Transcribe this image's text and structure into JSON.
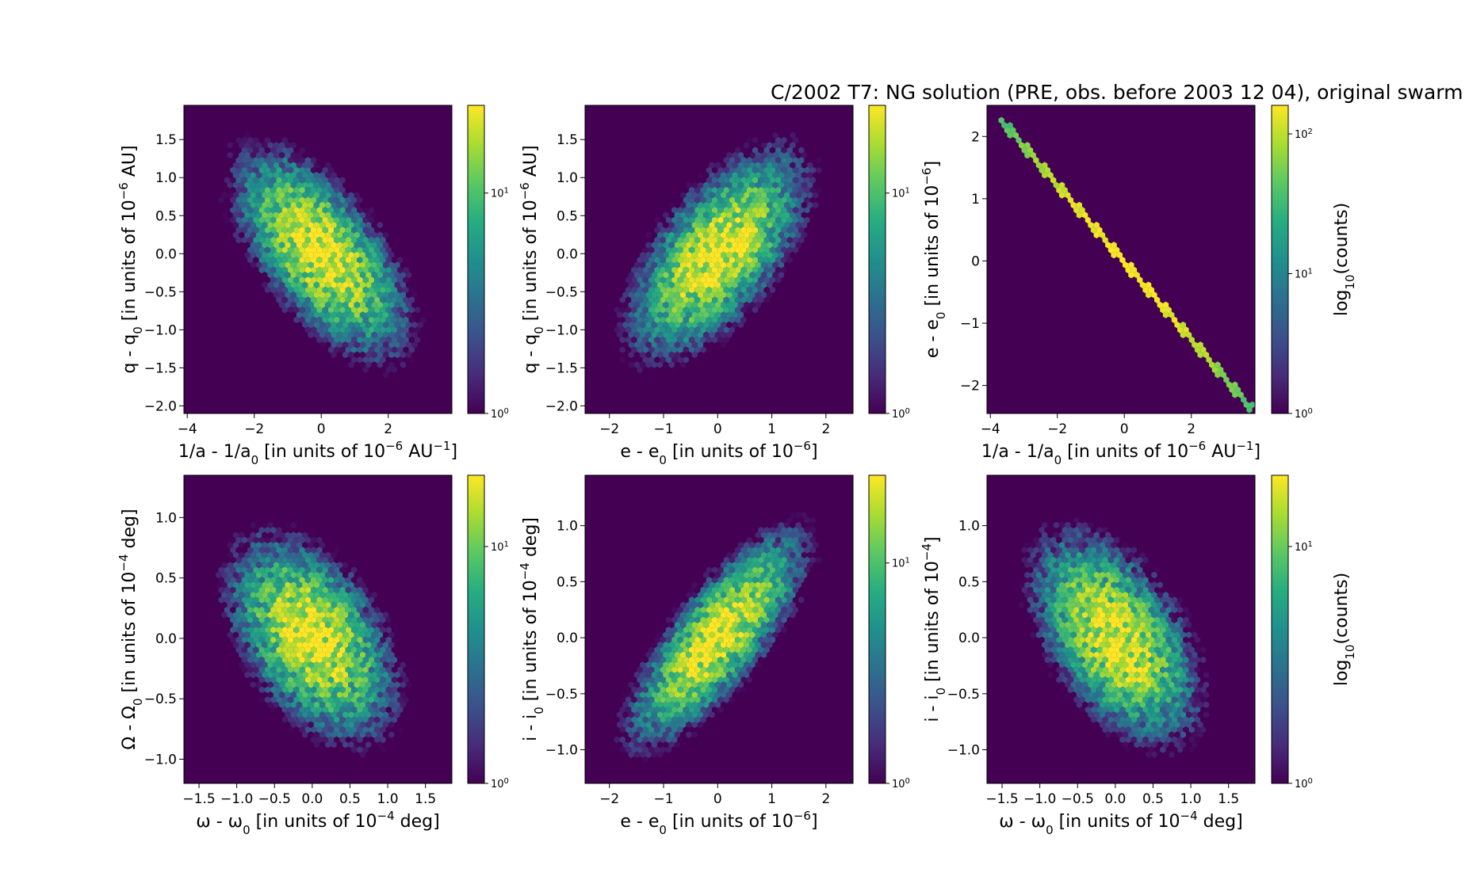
{
  "figure": {
    "title": "C/2002 T7:  NG solution (PRE, obs. before 2003 12 04), original swarm"
  },
  "colormap": [
    "#440154",
    "#472c7a",
    "#3b518b",
    "#2c718e",
    "#21908d",
    "#27ad81",
    "#5cc863",
    "#aadc32",
    "#fde725"
  ],
  "chart_data": [
    {
      "type": "hexbin",
      "id": "p1",
      "xlabel": "1/a - 1/a",
      "xlabel_sub": "0",
      "xlabel_tail": " [in units of 10",
      "xlabel_sup": "−6",
      "xlabel_unit": " AU",
      "xlabel_unit_sup": "−1",
      "xlabel_end": "]",
      "ylabel": "q - q",
      "ylabel_sub": "0",
      "ylabel_tail": " [in units of 10",
      "ylabel_sup": "−6",
      "ylabel_unit": " AU",
      "ylabel_unit_sup": "",
      "ylabel_end": "]",
      "xlim": [
        -4.1,
        3.9
      ],
      "ylim": [
        -2.1,
        1.95
      ],
      "xticks": [
        -4,
        -2,
        0,
        2
      ],
      "xtick_labels": [
        "−4",
        "−2",
        "0",
        "2"
      ],
      "yticks": [
        -2.0,
        -1.5,
        -1.0,
        -0.5,
        0.0,
        0.5,
        1.0,
        1.5
      ],
      "ytick_labels": [
        "−2.0",
        "−1.5",
        "−1.0",
        "−0.5",
        "0.0",
        "0.5",
        "1.0",
        "1.5"
      ],
      "distribution": {
        "center": [
          0,
          0
        ],
        "sigma": [
          1.15,
          0.6
        ],
        "rho": -0.62,
        "count_max": 25
      },
      "colorbar": {
        "label": "",
        "tick_base": [
          "10",
          "10"
        ],
        "tick_exp": [
          "0",
          "1"
        ],
        "tick_values": [
          1,
          10
        ],
        "vmax": 25
      }
    },
    {
      "type": "hexbin",
      "id": "p2",
      "xlabel": "e - e",
      "xlabel_sub": "0",
      "xlabel_tail": " [in units of 10",
      "xlabel_sup": "−6",
      "xlabel_unit": "",
      "xlabel_unit_sup": "",
      "xlabel_end": "]",
      "ylabel": "q - q",
      "ylabel_sub": "0",
      "ylabel_tail": " [in units of 10",
      "ylabel_sup": "−6",
      "ylabel_unit": " AU",
      "ylabel_unit_sup": "",
      "ylabel_end": "]",
      "xlim": [
        -2.45,
        2.5
      ],
      "ylim": [
        -2.1,
        1.95
      ],
      "xticks": [
        -2,
        -1,
        0,
        1,
        2
      ],
      "xtick_labels": [
        "−2",
        "−1",
        "0",
        "1",
        "2"
      ],
      "yticks": [
        -2.0,
        -1.5,
        -1.0,
        -0.5,
        0.0,
        0.5,
        1.0,
        1.5
      ],
      "ytick_labels": [
        "−2.0",
        "−1.5",
        "−1.0",
        "−0.5",
        "0.0",
        "0.5",
        "1.0",
        "1.5"
      ],
      "distribution": {
        "center": [
          0,
          0
        ],
        "sigma": [
          0.72,
          0.6
        ],
        "rho": 0.62,
        "count_max": 25
      },
      "colorbar": {
        "label": "",
        "tick_base": [
          "10",
          "10"
        ],
        "tick_exp": [
          "0",
          "1"
        ],
        "tick_values": [
          1,
          10
        ],
        "vmax": 25
      }
    },
    {
      "type": "hexbin",
      "id": "p3",
      "xlabel": "1/a - 1/a",
      "xlabel_sub": "0",
      "xlabel_tail": " [in units of 10",
      "xlabel_sup": "−6",
      "xlabel_unit": " AU",
      "xlabel_unit_sup": "−1",
      "xlabel_end": "]",
      "ylabel": "e - e",
      "ylabel_sub": "0",
      "ylabel_tail": " [in units of 10",
      "ylabel_sup": "−6",
      "ylabel_unit": "",
      "ylabel_unit_sup": "",
      "ylabel_end": "]",
      "xlim": [
        -4.1,
        3.9
      ],
      "ylim": [
        -2.45,
        2.5
      ],
      "xticks": [
        -4,
        -2,
        0,
        2
      ],
      "xtick_labels": [
        "−4",
        "−2",
        "0",
        "2"
      ],
      "yticks": [
        -2,
        -1,
        0,
        1,
        2
      ],
      "ytick_labels": [
        "−2",
        "−1",
        "0",
        "1",
        "2"
      ],
      "line": {
        "from": [
          -3.75,
          2.3
        ],
        "to": [
          3.8,
          -2.38
        ],
        "count_max": 160
      },
      "colorbar": {
        "label": "log",
        "label_sub": "10",
        "label_tail": "(counts)",
        "tick_base": [
          "10",
          "10",
          "10"
        ],
        "tick_exp": [
          "0",
          "1",
          "2"
        ],
        "tick_values": [
          1,
          10,
          100
        ],
        "vmax": 160
      }
    },
    {
      "type": "hexbin",
      "id": "p4",
      "xlabel": "ω - ω",
      "xlabel_sub": "0",
      "xlabel_tail": " [in units of 10",
      "xlabel_sup": "−4",
      "xlabel_unit": " deg",
      "xlabel_unit_sup": "",
      "xlabel_end": "]",
      "ylabel": "Ω - Ω",
      "ylabel_sub": "0",
      "ylabel_tail": " [in units of 10",
      "ylabel_sup": "−4",
      "ylabel_unit": " deg",
      "ylabel_unit_sup": "",
      "ylabel_end": "]",
      "xlim": [
        -1.7,
        1.85
      ],
      "ylim": [
        -1.2,
        1.35
      ],
      "xticks": [
        -1.5,
        -1.0,
        -0.5,
        0.0,
        0.5,
        1.0,
        1.5
      ],
      "xtick_labels": [
        "−1.5",
        "−1.0",
        "−0.5",
        "0.0",
        "0.5",
        "1.0",
        "1.5"
      ],
      "yticks": [
        -1.0,
        -0.5,
        0.0,
        0.5,
        1.0
      ],
      "ytick_labels": [
        "−1.0",
        "−0.5",
        "0.0",
        "0.5",
        "1.0"
      ],
      "distribution": {
        "center": [
          0,
          0
        ],
        "sigma": [
          0.5,
          0.38
        ],
        "rho": -0.45,
        "count_max": 20
      },
      "colorbar": {
        "label": "",
        "tick_base": [
          "10"
        ],
        "tick_exp": [
          "1"
        ],
        "tick_values": [
          10
        ],
        "bottom_base": "10",
        "bottom_exp": "0",
        "vmax": 20
      }
    },
    {
      "type": "hexbin",
      "id": "p5",
      "xlabel": "e - e",
      "xlabel_sub": "0",
      "xlabel_tail": " [in units of 10",
      "xlabel_sup": "−6",
      "xlabel_unit": "",
      "xlabel_unit_sup": "",
      "xlabel_end": "]",
      "ylabel": "i - i",
      "ylabel_sub": "0",
      "ylabel_tail": " [in units of 10",
      "ylabel_sup": "−4",
      "ylabel_unit": " deg",
      "ylabel_unit_sup": "",
      "ylabel_end": "]",
      "xlim": [
        -2.45,
        2.5
      ],
      "ylim": [
        -1.3,
        1.45
      ],
      "xticks": [
        -2,
        -1,
        0,
        1,
        2
      ],
      "xtick_labels": [
        "−2",
        "−1",
        "0",
        "1",
        "2"
      ],
      "yticks": [
        -1.0,
        -0.5,
        0.0,
        0.5,
        1.0
      ],
      "ytick_labels": [
        "−1.0",
        "−0.5",
        "0.0",
        "0.5",
        "1.0"
      ],
      "distribution": {
        "center": [
          0,
          0
        ],
        "sigma": [
          0.72,
          0.42
        ],
        "rho": 0.78,
        "count_max": 25
      },
      "colorbar": {
        "label": "",
        "tick_base": [
          "10",
          "10"
        ],
        "tick_exp": [
          "0",
          "1"
        ],
        "tick_values": [
          1,
          10
        ],
        "vmax": 25
      }
    },
    {
      "type": "hexbin",
      "id": "p6",
      "xlabel": "ω - ω",
      "xlabel_sub": "0",
      "xlabel_tail": " [in units of 10",
      "xlabel_sup": "−4",
      "xlabel_unit": " deg",
      "xlabel_unit_sup": "",
      "xlabel_end": "]",
      "ylabel": "i - i",
      "ylabel_sub": "0",
      "ylabel_tail": " [in units of 10",
      "ylabel_sup": "−4",
      "ylabel_unit": "",
      "ylabel_unit_sup": "",
      "ylabel_end": "]",
      "xlim": [
        -1.7,
        1.85
      ],
      "ylim": [
        -1.3,
        1.45
      ],
      "xticks": [
        -1.5,
        -1.0,
        -0.5,
        0.0,
        0.5,
        1.0,
        1.5
      ],
      "xtick_labels": [
        "−1.5",
        "−1.0",
        "−0.5",
        "0.0",
        "0.5",
        "1.0",
        "1.5"
      ],
      "yticks": [
        -1.0,
        -0.5,
        0.0,
        0.5,
        1.0
      ],
      "ytick_labels": [
        "−1.0",
        "−0.5",
        "0.0",
        "0.5",
        "1.0"
      ],
      "distribution": {
        "center": [
          0,
          0
        ],
        "sigma": [
          0.5,
          0.42
        ],
        "rho": -0.5,
        "count_max": 20
      },
      "colorbar": {
        "label": "log",
        "label_sub": "10",
        "label_tail": "(counts)",
        "tick_base": [
          "10"
        ],
        "tick_exp": [
          "1"
        ],
        "tick_values": [
          10
        ],
        "bottom_base": "10",
        "bottom_exp": "0",
        "vmax": 20
      }
    }
  ]
}
